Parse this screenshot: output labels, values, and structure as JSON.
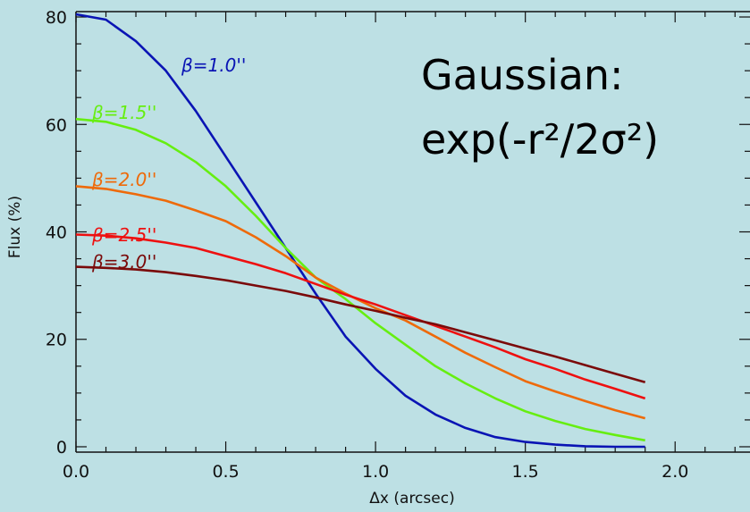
{
  "chart_data": {
    "type": "line",
    "title": "",
    "xlabel": "Δx (arcsec)",
    "ylabel": "Flux (%)",
    "xlim": [
      0.0,
      2.25
    ],
    "ylim": [
      -1,
      81
    ],
    "xticks": [
      "0.0",
      "0.5",
      "1.0",
      "1.5",
      "2.0"
    ],
    "xtick_values": [
      0.0,
      0.5,
      1.0,
      1.5,
      2.0
    ],
    "yticks": [
      "0",
      "20",
      "40",
      "60",
      "80"
    ],
    "ytick_values": [
      0,
      20,
      40,
      60,
      80
    ],
    "grid": false,
    "annotation": {
      "line1": "Gaussian:",
      "line2": "exp(-r²/2σ²)"
    },
    "x": [
      0.0,
      0.1,
      0.2,
      0.3,
      0.4,
      0.5,
      0.6,
      0.7,
      0.8,
      0.9,
      1.0,
      1.1,
      1.2,
      1.3,
      1.4,
      1.5,
      1.6,
      1.7,
      1.8,
      1.9
    ],
    "series": [
      {
        "name": "β=1.0''",
        "color": "#0a14b4",
        "values": [
          80.5,
          79.5,
          75.5,
          70.0,
          62.5,
          54.0,
          45.5,
          37.0,
          28.5,
          20.5,
          14.5,
          9.5,
          6.0,
          3.5,
          1.8,
          0.9,
          0.4,
          0.1,
          0.0,
          0.0
        ]
      },
      {
        "name": "β=1.5''",
        "color": "#66ee11",
        "values": [
          61.0,
          60.5,
          59.0,
          56.5,
          53.0,
          48.5,
          43.0,
          37.0,
          31.5,
          27.5,
          23.0,
          19.0,
          15.0,
          11.8,
          9.0,
          6.6,
          4.8,
          3.3,
          2.2,
          1.2
        ]
      },
      {
        "name": "β=2.0''",
        "color": "#ee6a0a",
        "values": [
          48.5,
          48.0,
          47.0,
          45.8,
          44.0,
          42.0,
          39.0,
          35.5,
          31.5,
          28.5,
          25.8,
          23.5,
          20.5,
          17.5,
          14.8,
          12.2,
          10.3,
          8.5,
          6.8,
          5.3
        ]
      },
      {
        "name": "β=2.5''",
        "color": "#ee1010",
        "values": [
          39.5,
          39.3,
          38.8,
          38.0,
          37.0,
          35.5,
          34.0,
          32.3,
          30.3,
          28.3,
          26.5,
          24.5,
          22.5,
          20.5,
          18.5,
          16.3,
          14.5,
          12.5,
          10.8,
          9.0
        ]
      },
      {
        "name": "β=3.0''",
        "color": "#7a0a0a",
        "values": [
          33.5,
          33.3,
          33.0,
          32.5,
          31.8,
          31.0,
          30.0,
          29.0,
          27.8,
          26.5,
          25.3,
          24.0,
          22.8,
          21.3,
          19.8,
          18.3,
          16.8,
          15.2,
          13.6,
          12.0
        ]
      }
    ]
  }
}
